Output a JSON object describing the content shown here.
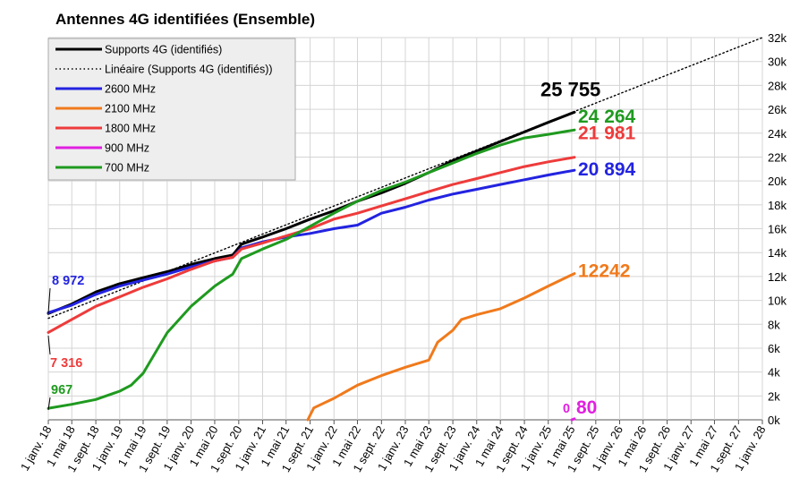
{
  "chart_data": {
    "type": "line",
    "title": "Antennes 4G identifiées (Ensemble)",
    "xlabel": "",
    "ylabel": "",
    "grid": true,
    "legend_position": "top-left",
    "x_range": [
      "2018-01-01",
      "2028-01-01"
    ],
    "ylim": [
      0,
      32000
    ],
    "y_ticks": [
      "0k",
      "2k",
      "4k",
      "6k",
      "8k",
      "10k",
      "12k",
      "14k",
      "16k",
      "18k",
      "20k",
      "22k",
      "24k",
      "26k",
      "28k",
      "30k",
      "32k"
    ],
    "x_ticks": [
      {
        "date": "2018-01-01",
        "label": "1 janv. 18"
      },
      {
        "date": "2018-05-01",
        "label": "1 mai 18"
      },
      {
        "date": "2018-09-01",
        "label": "1 sept. 18"
      },
      {
        "date": "2019-01-01",
        "label": "1 janv. 19"
      },
      {
        "date": "2019-05-01",
        "label": "1 mai 19"
      },
      {
        "date": "2019-09-01",
        "label": "1 sept. 19"
      },
      {
        "date": "2020-01-01",
        "label": "1 janv. 20"
      },
      {
        "date": "2020-05-01",
        "label": "1 mai 20"
      },
      {
        "date": "2020-09-01",
        "label": "1 sept. 20"
      },
      {
        "date": "2021-01-01",
        "label": "1 janv. 21"
      },
      {
        "date": "2021-05-01",
        "label": "1 mai 21"
      },
      {
        "date": "2021-09-01",
        "label": "1 sept. 21"
      },
      {
        "date": "2022-01-01",
        "label": "1 janv. 22"
      },
      {
        "date": "2022-05-01",
        "label": "1 mai 22"
      },
      {
        "date": "2022-09-01",
        "label": "1 sept. 22"
      },
      {
        "date": "2023-01-01",
        "label": "1 janv. 23"
      },
      {
        "date": "2023-05-01",
        "label": "1 mai 23"
      },
      {
        "date": "2023-09-01",
        "label": "1 sept. 23"
      },
      {
        "date": "2024-01-01",
        "label": "1 janv. 24"
      },
      {
        "date": "2024-05-01",
        "label": "1 mai 24"
      },
      {
        "date": "2024-09-01",
        "label": "1 sept. 24"
      },
      {
        "date": "2025-01-01",
        "label": "1 janv. 25"
      },
      {
        "date": "2025-05-01",
        "label": "1 mai 25"
      },
      {
        "date": "2025-09-01",
        "label": "1 sept. 25"
      },
      {
        "date": "2026-01-01",
        "label": "1 janv. 26"
      },
      {
        "date": "2026-05-01",
        "label": "1 mai 26"
      },
      {
        "date": "2026-09-01",
        "label": "1 sept. 26"
      },
      {
        "date": "2027-01-01",
        "label": "1 janv. 27"
      },
      {
        "date": "2027-05-01",
        "label": "1 mai 27"
      },
      {
        "date": "2027-09-01",
        "label": "1 sept. 27"
      },
      {
        "date": "2028-01-01",
        "label": "1 janv. 28"
      }
    ],
    "series": [
      {
        "name": "Supports 4G (identifiés)",
        "color": "#000000",
        "style": "solid",
        "end_label": "25 755",
        "points": [
          [
            "2018-01-01",
            8900
          ],
          [
            "2018-05-01",
            9700
          ],
          [
            "2018-09-01",
            10700
          ],
          [
            "2019-01-01",
            11400
          ],
          [
            "2019-05-01",
            11900
          ],
          [
            "2019-09-01",
            12400
          ],
          [
            "2020-01-01",
            13000
          ],
          [
            "2020-05-01",
            13500
          ],
          [
            "2020-08-01",
            13800
          ],
          [
            "2020-09-15",
            14700
          ],
          [
            "2021-01-01",
            15300
          ],
          [
            "2021-05-01",
            16000
          ],
          [
            "2021-09-01",
            16800
          ],
          [
            "2022-01-01",
            17500
          ],
          [
            "2022-05-01",
            18300
          ],
          [
            "2022-09-01",
            19000
          ],
          [
            "2023-01-01",
            19800
          ],
          [
            "2023-05-01",
            20700
          ],
          [
            "2023-09-01",
            21700
          ],
          [
            "2024-01-01",
            22500
          ],
          [
            "2024-05-01",
            23300
          ],
          [
            "2024-09-01",
            24100
          ],
          [
            "2025-01-01",
            24900
          ],
          [
            "2025-05-15",
            25755
          ]
        ]
      },
      {
        "name": "Linéaire (Supports 4G (identifiés))",
        "color": "#000000",
        "style": "dotted",
        "points": [
          [
            "2018-01-01",
            8500
          ],
          [
            "2028-01-01",
            32000
          ]
        ]
      },
      {
        "name": "2600 MHz",
        "color": "#2323e0",
        "style": "solid",
        "end_label": "20 894",
        "start_label": "8 972",
        "points": [
          [
            "2018-01-01",
            8972
          ],
          [
            "2018-05-01",
            9600
          ],
          [
            "2018-09-01",
            10500
          ],
          [
            "2019-01-01",
            11200
          ],
          [
            "2019-05-01",
            11700
          ],
          [
            "2019-09-01",
            12200
          ],
          [
            "2020-01-01",
            12800
          ],
          [
            "2020-05-01",
            13300
          ],
          [
            "2020-08-01",
            13600
          ],
          [
            "2020-09-15",
            14400
          ],
          [
            "2021-01-01",
            14900
          ],
          [
            "2021-05-01",
            15300
          ],
          [
            "2021-09-01",
            15600
          ],
          [
            "2022-01-01",
            16000
          ],
          [
            "2022-05-01",
            16300
          ],
          [
            "2022-09-01",
            17300
          ],
          [
            "2023-01-01",
            17800
          ],
          [
            "2023-05-01",
            18400
          ],
          [
            "2023-09-01",
            18900
          ],
          [
            "2024-01-01",
            19300
          ],
          [
            "2024-05-01",
            19700
          ],
          [
            "2024-09-01",
            20100
          ],
          [
            "2025-01-01",
            20500
          ],
          [
            "2025-05-15",
            20894
          ]
        ]
      },
      {
        "name": "2100 MHz",
        "color": "#f07a1c",
        "style": "solid",
        "end_label": "12242",
        "points": [
          [
            "2021-08-20",
            0
          ],
          [
            "2021-09-20",
            1000
          ],
          [
            "2022-01-01",
            1800
          ],
          [
            "2022-05-01",
            2900
          ],
          [
            "2022-09-01",
            3700
          ],
          [
            "2023-01-01",
            4400
          ],
          [
            "2023-05-01",
            5000
          ],
          [
            "2023-06-15",
            6500
          ],
          [
            "2023-09-01",
            7500
          ],
          [
            "2023-10-15",
            8400
          ],
          [
            "2024-01-01",
            8800
          ],
          [
            "2024-05-01",
            9300
          ],
          [
            "2024-09-01",
            10200
          ],
          [
            "2025-01-01",
            11200
          ],
          [
            "2025-05-15",
            12242
          ]
        ]
      },
      {
        "name": "1800 MHz",
        "color": "#ee3b3b",
        "style": "solid",
        "end_label": "21 981",
        "start_label": "7 316",
        "points": [
          [
            "2018-01-01",
            7316
          ],
          [
            "2018-05-01",
            8400
          ],
          [
            "2018-09-01",
            9500
          ],
          [
            "2019-01-01",
            10300
          ],
          [
            "2019-05-01",
            11100
          ],
          [
            "2019-09-01",
            11800
          ],
          [
            "2020-01-01",
            12600
          ],
          [
            "2020-05-01",
            13300
          ],
          [
            "2020-08-01",
            13600
          ],
          [
            "2020-09-15",
            14300
          ],
          [
            "2021-01-01",
            14800
          ],
          [
            "2021-05-01",
            15400
          ],
          [
            "2021-09-01",
            16000
          ],
          [
            "2022-01-01",
            16800
          ],
          [
            "2022-05-01",
            17300
          ],
          [
            "2022-09-01",
            17900
          ],
          [
            "2023-01-01",
            18500
          ],
          [
            "2023-05-01",
            19100
          ],
          [
            "2023-09-01",
            19700
          ],
          [
            "2024-01-01",
            20200
          ],
          [
            "2024-05-01",
            20700
          ],
          [
            "2024-09-01",
            21200
          ],
          [
            "2025-01-01",
            21600
          ],
          [
            "2025-05-15",
            21981
          ]
        ]
      },
      {
        "name": "900 MHz",
        "color": "#e020e0",
        "style": "solid",
        "end_label": "80",
        "start_label": "0",
        "points": [
          [
            "2025-05-01",
            0
          ],
          [
            "2025-05-15",
            80
          ]
        ]
      },
      {
        "name": "700 MHz",
        "color": "#1f9a1f",
        "style": "solid",
        "end_label": "24 264",
        "start_label": "967",
        "points": [
          [
            "2018-01-01",
            967
          ],
          [
            "2018-05-01",
            1300
          ],
          [
            "2018-09-01",
            1700
          ],
          [
            "2019-01-01",
            2400
          ],
          [
            "2019-03-01",
            2900
          ],
          [
            "2019-05-01",
            3900
          ],
          [
            "2019-09-01",
            7300
          ],
          [
            "2020-01-01",
            9500
          ],
          [
            "2020-05-01",
            11200
          ],
          [
            "2020-08-01",
            12200
          ],
          [
            "2020-09-15",
            13500
          ],
          [
            "2021-01-01",
            14300
          ],
          [
            "2021-05-01",
            15100
          ],
          [
            "2021-09-01",
            16200
          ],
          [
            "2022-01-01",
            17300
          ],
          [
            "2022-05-01",
            18300
          ],
          [
            "2022-09-01",
            19200
          ],
          [
            "2023-01-01",
            19900
          ],
          [
            "2023-05-01",
            20700
          ],
          [
            "2023-09-01",
            21500
          ],
          [
            "2024-01-01",
            22300
          ],
          [
            "2024-05-01",
            23000
          ],
          [
            "2024-09-01",
            23600
          ],
          [
            "2025-01-01",
            23900
          ],
          [
            "2025-05-15",
            24264
          ]
        ]
      }
    ]
  }
}
